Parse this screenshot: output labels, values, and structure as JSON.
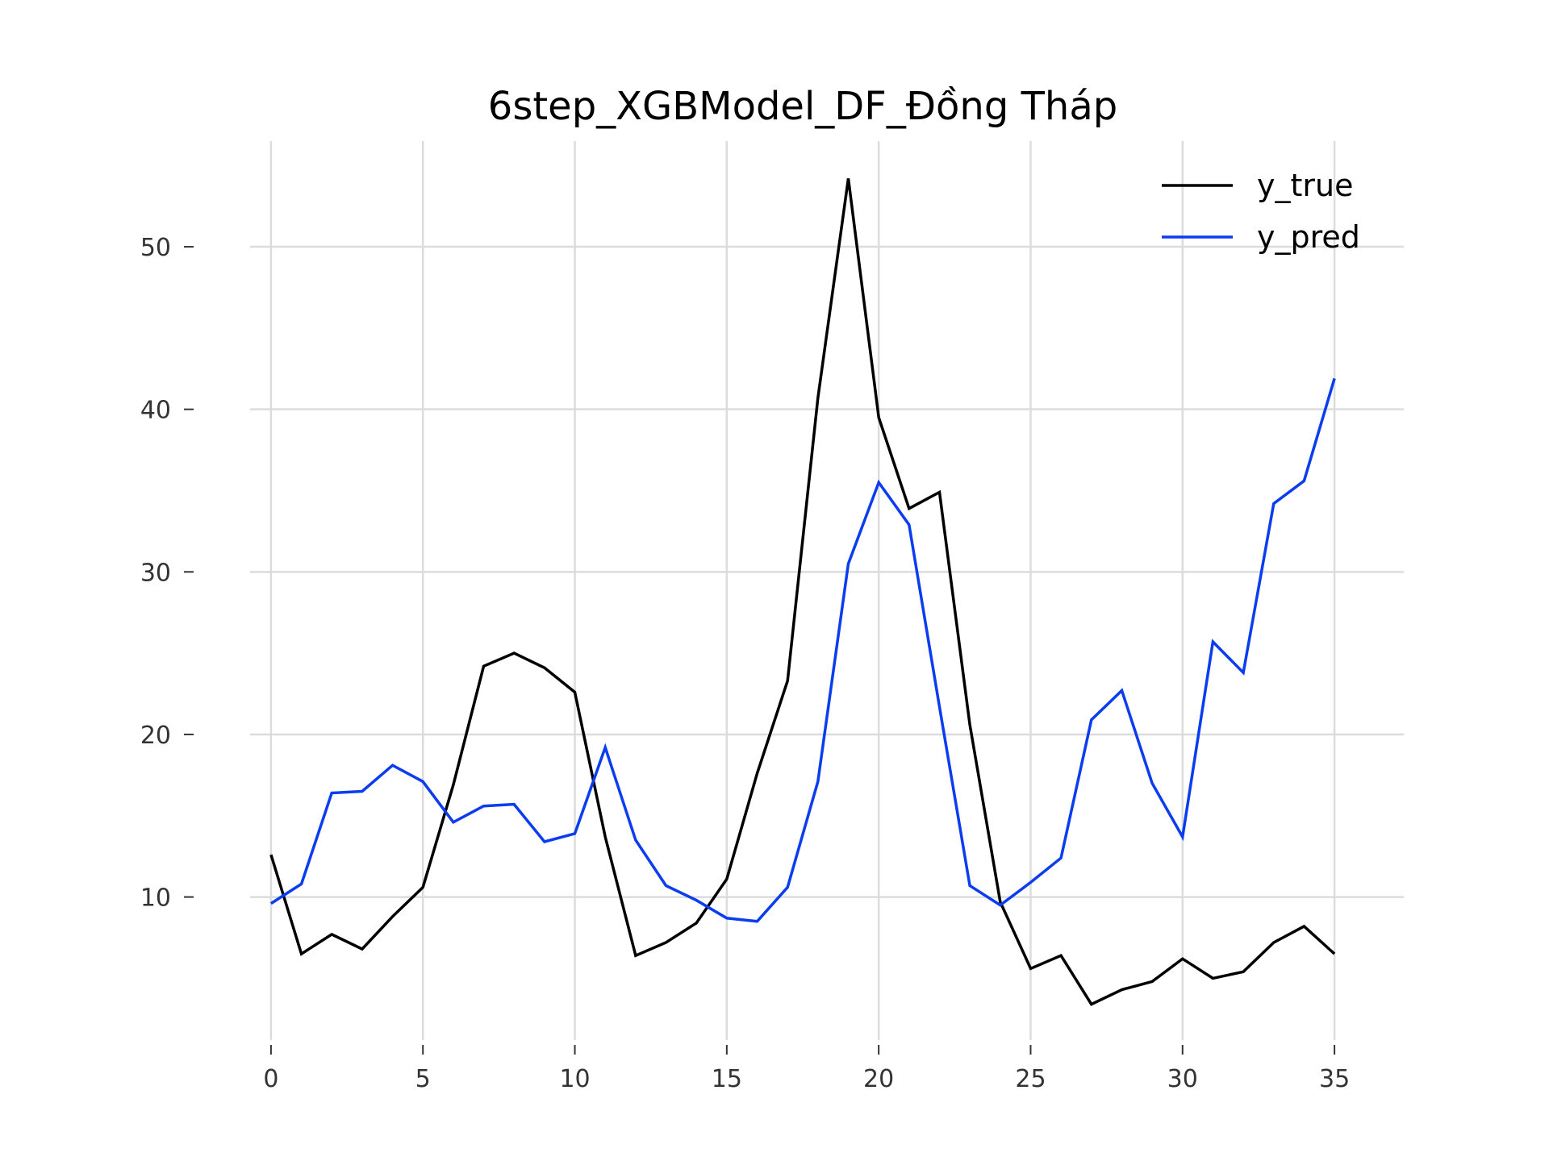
{
  "chart_data": {
    "type": "line",
    "title": "6step_XGBModel_DF_Đồng Tháp",
    "xlabel": "",
    "ylabel": "",
    "xlim": [
      -1.75,
      36.75
    ],
    "ylim": [
      1.2,
      56.5
    ],
    "x_ticks": [
      0,
      5,
      10,
      15,
      20,
      25,
      30,
      35
    ],
    "y_ticks": [
      10,
      20,
      30,
      40,
      50
    ],
    "grid": true,
    "legend_position": "top-right",
    "x": [
      0,
      1,
      2,
      3,
      4,
      5,
      6,
      7,
      8,
      9,
      10,
      11,
      12,
      13,
      14,
      15,
      16,
      17,
      18,
      19,
      20,
      21,
      22,
      23,
      24,
      25,
      26,
      27,
      28,
      29,
      30,
      31,
      32,
      33,
      34,
      35
    ],
    "series": [
      {
        "name": "y_true",
        "color": "#000000",
        "values": [
          12.6,
          6.5,
          7.7,
          6.8,
          8.8,
          10.6,
          16.9,
          24.2,
          25.0,
          24.1,
          22.6,
          13.7,
          6.4,
          7.2,
          8.4,
          11.1,
          17.6,
          23.3,
          40.7,
          54.2,
          39.5,
          33.9,
          34.9,
          20.6,
          9.7,
          5.6,
          6.4,
          3.4,
          4.3,
          4.8,
          6.2,
          5.0,
          5.4,
          7.2,
          8.2,
          6.5
        ]
      },
      {
        "name": "y_pred",
        "color": "#0a3cf0",
        "values": [
          9.6,
          10.8,
          16.4,
          16.5,
          18.1,
          17.1,
          14.6,
          15.6,
          15.7,
          13.4,
          13.9,
          19.2,
          13.5,
          10.7,
          9.8,
          8.7,
          8.5,
          10.6,
          17.1,
          30.5,
          35.5,
          32.9,
          21.7,
          10.7,
          9.5,
          10.9,
          12.4,
          20.9,
          22.7,
          17.0,
          13.7,
          25.7,
          23.8,
          34.2,
          35.6,
          41.9
        ]
      }
    ]
  }
}
